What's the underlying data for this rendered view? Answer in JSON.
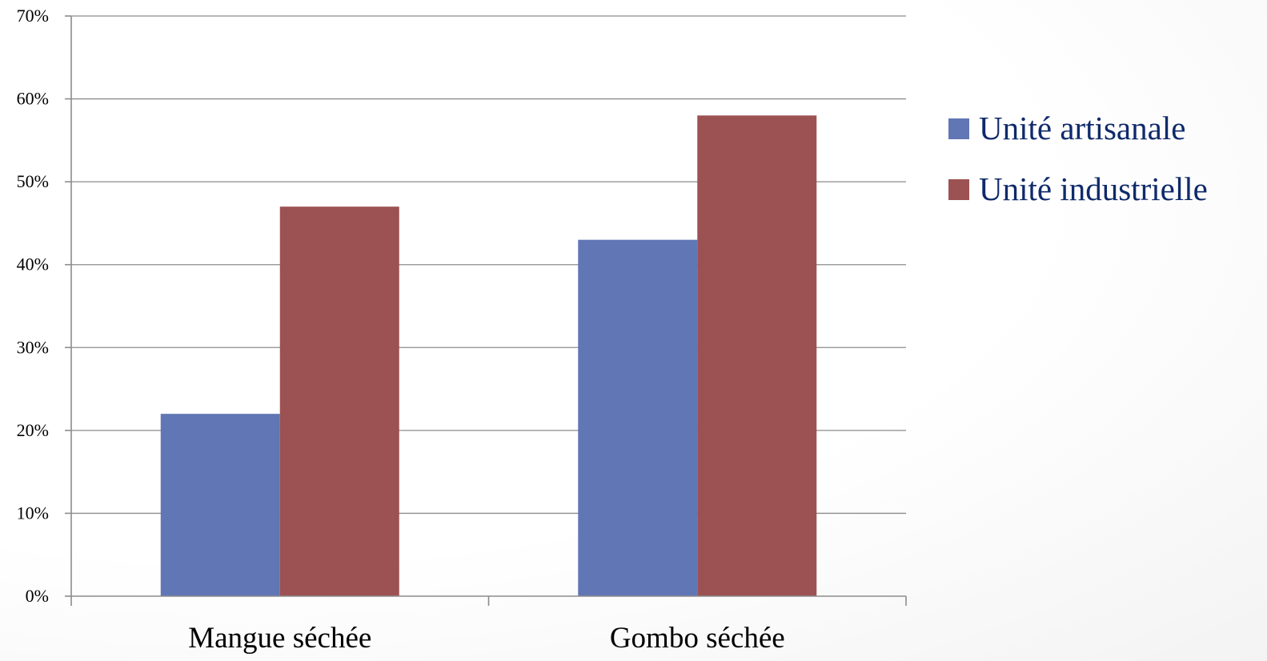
{
  "chart_data": {
    "type": "bar",
    "categories": [
      "Mangue séchée",
      "Gombo séchée"
    ],
    "series": [
      {
        "name": "Unité artisanale",
        "values": [
          22,
          43
        ],
        "color": "#6176b4"
      },
      {
        "name": "Unité industrielle",
        "values": [
          47,
          58
        ],
        "color": "#9c5252"
      }
    ],
    "ylim": [
      0,
      70
    ],
    "yticks": [
      0,
      10,
      20,
      30,
      40,
      50,
      60,
      70
    ],
    "ytick_labels": [
      "0%",
      "10%",
      "20%",
      "30%",
      "40%",
      "50%",
      "60%",
      "70%"
    ],
    "grid": true,
    "legend_position": "right",
    "title": "",
    "xlabel": "",
    "ylabel": ""
  }
}
